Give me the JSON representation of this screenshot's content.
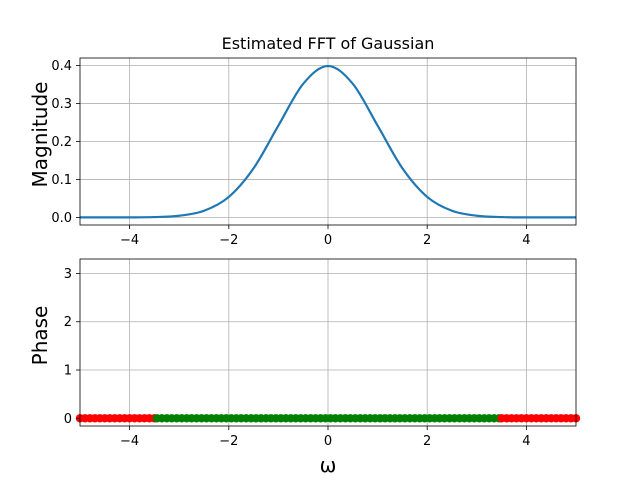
{
  "chart_data": [
    {
      "type": "line",
      "title": "Estimated FFT of Gaussian",
      "xlabel": "",
      "ylabel": "Magnitude",
      "xlim": [
        -5,
        5
      ],
      "ylim": [
        -0.02,
        0.42
      ],
      "xticks": [
        "−4",
        "−2",
        "0",
        "2",
        "4"
      ],
      "yticks": [
        "0.0",
        "0.1",
        "0.2",
        "0.3",
        "0.4"
      ],
      "grid": true,
      "series": [
        {
          "color": "#1f77b4",
          "x": [
            -5,
            -4.5,
            -4,
            -3.5,
            -3,
            -2.5,
            -2,
            -1.5,
            -1,
            -0.5,
            0,
            0.5,
            1,
            1.5,
            2,
            2.5,
            3,
            3.5,
            4,
            4.5,
            5
          ],
          "y": [
            0.0,
            0.0,
            0.0001,
            0.0009,
            0.0044,
            0.0175,
            0.054,
            0.1295,
            0.242,
            0.352,
            0.3989,
            0.352,
            0.242,
            0.1295,
            0.054,
            0.0175,
            0.0044,
            0.0009,
            0.0001,
            0.0,
            0.0
          ]
        }
      ]
    },
    {
      "type": "scatter",
      "title": "",
      "xlabel": "ω",
      "ylabel": "Phase",
      "xlim": [
        -5,
        5
      ],
      "ylim": [
        -0.16,
        3.3
      ],
      "xticks": [
        "−4",
        "−2",
        "0",
        "2",
        "4"
      ],
      "yticks": [
        "0",
        "1",
        "2",
        "3"
      ],
      "grid": true,
      "series": [
        {
          "color": "#ff0000",
          "x_range": [
            -5,
            -3.5
          ],
          "y": 0
        },
        {
          "color": "#008000",
          "x_range": [
            -3.45,
            3.45
          ],
          "y": 0
        },
        {
          "color": "#ff0000",
          "x_range": [
            3.5,
            5
          ],
          "y": 0
        }
      ],
      "point_step": 0.1
    }
  ]
}
